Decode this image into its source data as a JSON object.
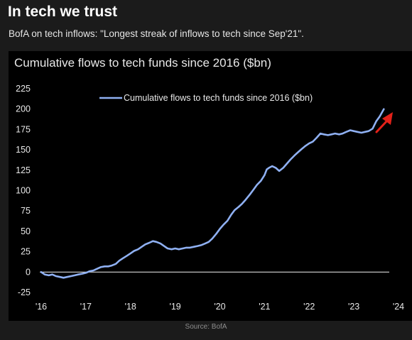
{
  "header": {
    "title": "In tech we trust",
    "subtitle": "BofA on tech inflows: \"Longest streak of inflows to tech since Sep'21\"."
  },
  "footer": {
    "source": "Source: BofA"
  },
  "colors": {
    "page_bg": "#1b1b1b",
    "chart_bg": "#000000",
    "line": "#8fb0f2",
    "zero_line": "#d8d8d8",
    "arrow": "#e32119",
    "text": "#e8e8e8"
  },
  "chart_data": {
    "type": "line",
    "title": "Cumulative flows to tech funds since 2016 ($bn)",
    "xlabel": "",
    "ylabel": "",
    "xlim": [
      2016,
      2024
    ],
    "ylim": [
      -25,
      225
    ],
    "x_tick_values": [
      2016,
      2017,
      2018,
      2019,
      2020,
      2021,
      2022,
      2023,
      2024
    ],
    "x_tick_labels": [
      "'16",
      "'17",
      "'18",
      "'19",
      "'20",
      "'21",
      "'22",
      "'23",
      "'24"
    ],
    "y_ticks": [
      -25,
      0,
      25,
      50,
      75,
      100,
      125,
      150,
      175,
      200,
      225
    ],
    "grid": false,
    "legend_position": "top-center",
    "reference_line": 0,
    "annotation": "red upward arrow after last data point",
    "series": [
      {
        "name": "Cumulative flows to tech funds since 2016 ($bn)",
        "x": [
          2016.0,
          2016.08,
          2016.17,
          2016.25,
          2016.33,
          2016.42,
          2016.5,
          2016.58,
          2016.67,
          2016.75,
          2016.83,
          2016.92,
          2017.0,
          2017.08,
          2017.17,
          2017.25,
          2017.33,
          2017.42,
          2017.5,
          2017.58,
          2017.67,
          2017.75,
          2017.83,
          2017.92,
          2018.0,
          2018.08,
          2018.17,
          2018.25,
          2018.33,
          2018.42,
          2018.5,
          2018.58,
          2018.67,
          2018.75,
          2018.83,
          2018.92,
          2019.0,
          2019.08,
          2019.17,
          2019.25,
          2019.33,
          2019.42,
          2019.5,
          2019.58,
          2019.67,
          2019.75,
          2019.83,
          2019.92,
          2020.0,
          2020.08,
          2020.17,
          2020.25,
          2020.33,
          2020.42,
          2020.5,
          2020.58,
          2020.67,
          2020.75,
          2020.83,
          2020.92,
          2021.0,
          2021.05,
          2021.1,
          2021.17,
          2021.25,
          2021.33,
          2021.42,
          2021.5,
          2021.58,
          2021.67,
          2021.75,
          2021.83,
          2021.92,
          2022.0,
          2022.08,
          2022.17,
          2022.25,
          2022.33,
          2022.42,
          2022.5,
          2022.58,
          2022.67,
          2022.75,
          2022.83,
          2022.92,
          2023.0,
          2023.08,
          2023.17,
          2023.25,
          2023.33,
          2023.42,
          2023.5,
          2023.58,
          2023.67
        ],
        "y": [
          0,
          -3,
          -4,
          -3,
          -5,
          -6,
          -7,
          -6,
          -5,
          -4,
          -3,
          -2,
          -1,
          1,
          2,
          4,
          6,
          7,
          7,
          8,
          10,
          14,
          17,
          20,
          23,
          26,
          28,
          31,
          34,
          36,
          38,
          37,
          35,
          32,
          29,
          28,
          29,
          28,
          29,
          30,
          30,
          31,
          32,
          33,
          35,
          37,
          41,
          47,
          53,
          58,
          63,
          70,
          76,
          80,
          84,
          89,
          95,
          101,
          107,
          112,
          119,
          126,
          128,
          130,
          128,
          124,
          128,
          133,
          138,
          143,
          147,
          151,
          155,
          158,
          160,
          165,
          170,
          169,
          168,
          169,
          170,
          169,
          170,
          172,
          174,
          173,
          172,
          171,
          172,
          173,
          176,
          185,
          191,
          200
        ]
      }
    ]
  }
}
